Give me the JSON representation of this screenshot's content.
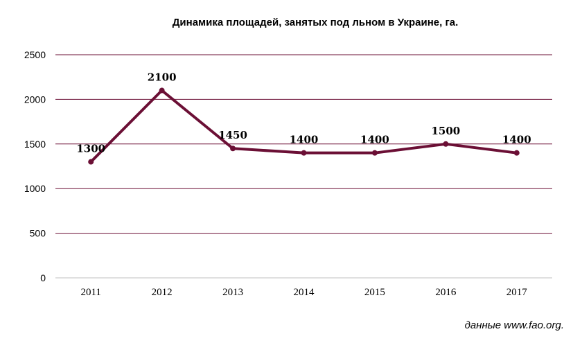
{
  "chart_data": {
    "type": "line",
    "title": "Динамика площадей, занятых под льном в Украине, га.",
    "x": [
      "2011",
      "2012",
      "2013",
      "2014",
      "2015",
      "2016",
      "2017"
    ],
    "series": [
      {
        "values": [
          1300,
          2100,
          1450,
          1400,
          1400,
          1500,
          1400
        ]
      }
    ],
    "data_labels": [
      "1300",
      "2100",
      "1450",
      "1400",
      "1400",
      "1500",
      "1400"
    ],
    "y_ticks": [
      "0",
      "500",
      "1000",
      "1500",
      "2000",
      "2500"
    ],
    "ylim": [
      0,
      2500
    ],
    "grid": true,
    "legend": "none",
    "xlabel": "",
    "ylabel": "",
    "colors": {
      "line": "#6B0F35",
      "grid": "#6B0F35",
      "axis": "#BFBFBF"
    }
  },
  "source_note": "данные www.fao.org."
}
